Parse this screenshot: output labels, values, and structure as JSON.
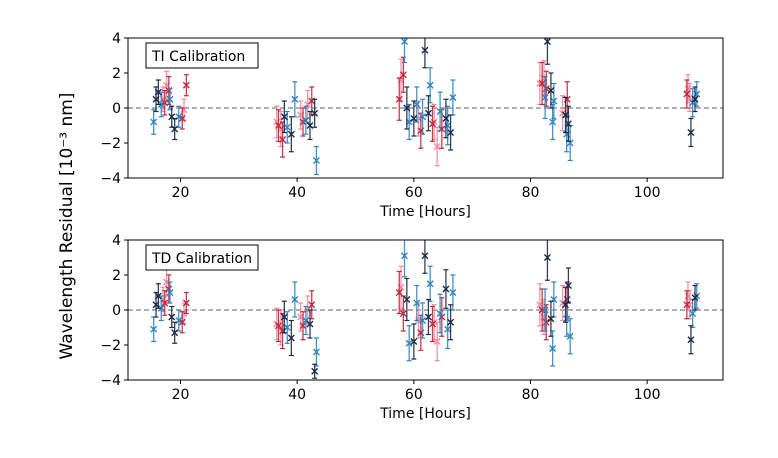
{
  "figure": {
    "ylabel_shared": "Wavelength Residual [10⁻³ nm]"
  },
  "chart_data": [
    {
      "type": "scatter",
      "title": "TI Calibration",
      "xlabel": "Time [Hours]",
      "xlim": [
        11,
        113
      ],
      "ylim": [
        -4,
        4
      ],
      "xticks": [
        20,
        40,
        60,
        80,
        100
      ],
      "yticks": [
        -4,
        -2,
        0,
        2,
        4
      ],
      "reference_line_y": 0,
      "colors": {
        "red": "#c2273a",
        "pink": "#f08aa0",
        "navy": "#1c2b4a",
        "blue": "#2e86c1"
      },
      "series": [
        {
          "name": "navy",
          "color": "navy",
          "points": [
            [
              15.8,
              0.5,
              0.7
            ],
            [
              16.2,
              0.9,
              0.7
            ],
            [
              18.5,
              -0.5,
              0.6
            ],
            [
              19,
              -1.2,
              0.6
            ],
            [
              37.8,
              -0.5,
              0.9
            ],
            [
              39,
              -1.5,
              1
            ],
            [
              42.2,
              -1,
              0.8
            ],
            [
              43,
              -0.3,
              0.8
            ],
            [
              58.8,
              0,
              1.2
            ],
            [
              60,
              -0.6,
              1
            ],
            [
              61.9,
              3.3,
              1
            ],
            [
              62.5,
              -0.3,
              1
            ],
            [
              65.5,
              -0.6,
              1.1
            ],
            [
              66.3,
              -1.4,
              1
            ],
            [
              82.9,
              3.8,
              1.3
            ],
            [
              83.5,
              1.0,
              1
            ],
            [
              86,
              -0.4,
              1
            ],
            [
              86.5,
              -0.9,
              1
            ],
            [
              107.5,
              -1.4,
              0.8
            ],
            [
              108.2,
              0.5,
              0.7
            ]
          ]
        },
        {
          "name": "blue",
          "color": "blue",
          "points": [
            [
              15.4,
              -0.8,
              0.7
            ],
            [
              16.7,
              0.2,
              0.7
            ],
            [
              18.2,
              0.5,
              0.6
            ],
            [
              19.7,
              -0.5,
              0.6
            ],
            [
              38.3,
              -1.1,
              0.9
            ],
            [
              39.6,
              0.5,
              1
            ],
            [
              41.5,
              -0.7,
              0.8
            ],
            [
              43.3,
              -3.0,
              0.8
            ],
            [
              58.4,
              3.8,
              1.2
            ],
            [
              59.2,
              -0.8,
              1
            ],
            [
              60.5,
              0.2,
              1
            ],
            [
              61.5,
              -0.5,
              1
            ],
            [
              62.8,
              1.3,
              1
            ],
            [
              64.5,
              -0.2,
              1.1
            ],
            [
              65.8,
              -1.0,
              1.1
            ],
            [
              66.7,
              0.6,
              1
            ],
            [
              82.5,
              0.6,
              1.2
            ],
            [
              83.8,
              -0.8,
              1
            ],
            [
              84,
              0.4,
              1
            ],
            [
              86.2,
              -1.5,
              1
            ],
            [
              86.8,
              -2.0,
              1
            ],
            [
              107.8,
              0.3,
              0.8
            ],
            [
              108.5,
              0.8,
              0.7
            ]
          ]
        },
        {
          "name": "red",
          "color": "red",
          "points": [
            [
              17.3,
              0.3,
              0.7
            ],
            [
              18,
              1.0,
              0.8
            ],
            [
              20.3,
              -0.6,
              0.6
            ],
            [
              21,
              1.3,
              0.6
            ],
            [
              36.8,
              -1.0,
              0.9
            ],
            [
              37.5,
              -1.8,
              1
            ],
            [
              41,
              -0.8,
              0.8
            ],
            [
              42.5,
              0.4,
              0.8
            ],
            [
              57.5,
              0.5,
              1.2
            ],
            [
              58.2,
              1.9,
              1
            ],
            [
              61.2,
              -1.3,
              1
            ],
            [
              63.2,
              -0.9,
              1
            ],
            [
              64.8,
              -1.2,
              1.1
            ],
            [
              82,
              1.4,
              1.2
            ],
            [
              82.7,
              1.1,
              1
            ],
            [
              86.3,
              0.5,
              1
            ],
            [
              106.8,
              0.8,
              0.8
            ]
          ]
        },
        {
          "name": "pink",
          "color": "pink",
          "points": [
            [
              17,
              0.5,
              0.7
            ],
            [
              17.6,
              1.3,
              0.8
            ],
            [
              20.6,
              -0.1,
              0.6
            ],
            [
              36.5,
              -0.8,
              0.9
            ],
            [
              37.2,
              -1.2,
              1
            ],
            [
              40.6,
              -0.4,
              0.8
            ],
            [
              41.8,
              0.2,
              0.8
            ],
            [
              57.8,
              1.6,
              1.2
            ],
            [
              60.8,
              -0.6,
              1
            ],
            [
              63.5,
              -0.8,
              1
            ],
            [
              64,
              -2.2,
              1.1
            ],
            [
              81.6,
              1.4,
              1.2
            ],
            [
              82.3,
              1.7,
              1
            ],
            [
              85.5,
              -0.3,
              1
            ],
            [
              107,
              1.1,
              0.8
            ],
            [
              107.3,
              0.6,
              0.8
            ]
          ]
        }
      ]
    },
    {
      "type": "scatter",
      "title": "TD Calibration",
      "xlabel": "Time [Hours]",
      "xlim": [
        11,
        113
      ],
      "ylim": [
        -4,
        4
      ],
      "xticks": [
        20,
        40,
        60,
        80,
        100
      ],
      "yticks": [
        -4,
        -2,
        0,
        2,
        4
      ],
      "reference_line_y": 0,
      "colors": {
        "red": "#c2273a",
        "pink": "#f08aa0",
        "navy": "#1c2b4a",
        "blue": "#2e86c1"
      },
      "series": [
        {
          "name": "navy",
          "color": "navy",
          "points": [
            [
              15.8,
              0.3,
              0.7
            ],
            [
              16.2,
              0.8,
              0.7
            ],
            [
              18.5,
              -0.4,
              0.6
            ],
            [
              19,
              -1.3,
              0.6
            ],
            [
              37.8,
              -0.4,
              0.9
            ],
            [
              39,
              -1.6,
              1
            ],
            [
              42.2,
              -0.8,
              0.8
            ],
            [
              43,
              -3.5,
              0.4
            ],
            [
              58.8,
              0.6,
              1.2
            ],
            [
              60,
              -1.8,
              1
            ],
            [
              61.9,
              3.1,
              1
            ],
            [
              62.5,
              -0.4,
              1
            ],
            [
              65.5,
              1.2,
              1.1
            ],
            [
              66.3,
              -0.7,
              1
            ],
            [
              82.9,
              3.0,
              1.3
            ],
            [
              83.5,
              -0.5,
              1
            ],
            [
              86,
              0.3,
              1
            ],
            [
              86.5,
              1.4,
              1
            ],
            [
              107.5,
              -1.7,
              0.8
            ],
            [
              108.2,
              0.7,
              0.7
            ]
          ]
        },
        {
          "name": "blue",
          "color": "blue",
          "points": [
            [
              15.4,
              -1.1,
              0.7
            ],
            [
              16.7,
              0.1,
              0.7
            ],
            [
              18.2,
              1.0,
              0.6
            ],
            [
              19.7,
              -0.6,
              0.6
            ],
            [
              38.3,
              -1.0,
              0.9
            ],
            [
              39.6,
              0.6,
              1
            ],
            [
              41.5,
              -0.6,
              0.8
            ],
            [
              43.3,
              -2.4,
              0.8
            ],
            [
              58.4,
              3.1,
              1.2
            ],
            [
              59.2,
              -1.9,
              1
            ],
            [
              60.5,
              0.4,
              1
            ],
            [
              61.5,
              -0.6,
              1
            ],
            [
              62.8,
              1.5,
              1
            ],
            [
              64.5,
              -0.2,
              1.1
            ],
            [
              65.8,
              -1.1,
              1.1
            ],
            [
              66.7,
              1.0,
              1
            ],
            [
              82.5,
              0.0,
              1.2
            ],
            [
              83.8,
              -2.2,
              1
            ],
            [
              84,
              0.6,
              1
            ],
            [
              86.2,
              -0.5,
              1
            ],
            [
              86.8,
              -1.5,
              1
            ],
            [
              107.8,
              -0.2,
              0.8
            ],
            [
              108.5,
              0.8,
              0.7
            ]
          ]
        },
        {
          "name": "red",
          "color": "red",
          "points": [
            [
              17.3,
              0.4,
              0.7
            ],
            [
              18,
              1.2,
              0.8
            ],
            [
              20.3,
              -0.7,
              0.6
            ],
            [
              21,
              0.4,
              0.6
            ],
            [
              36.8,
              -0.9,
              0.9
            ],
            [
              37.5,
              -1.2,
              1
            ],
            [
              41,
              -0.9,
              0.8
            ],
            [
              42.5,
              0.3,
              0.8
            ],
            [
              57.5,
              1.0,
              1.2
            ],
            [
              58.2,
              -0.2,
              1
            ],
            [
              61.2,
              -1.3,
              1
            ],
            [
              63.2,
              -0.8,
              1
            ],
            [
              64.8,
              -0.4,
              1.1
            ],
            [
              82,
              0.0,
              1.2
            ],
            [
              82.7,
              -0.7,
              1
            ],
            [
              86.3,
              0.6,
              1
            ],
            [
              106.8,
              0.3,
              0.8
            ]
          ]
        },
        {
          "name": "pink",
          "color": "pink",
          "points": [
            [
              17,
              0.6,
              0.7
            ],
            [
              17.6,
              1.6,
              0.8
            ],
            [
              20.6,
              -0.2,
              0.6
            ],
            [
              36.5,
              -0.8,
              0.9
            ],
            [
              37.2,
              -1.0,
              1
            ],
            [
              40.6,
              -0.4,
              0.8
            ],
            [
              41.8,
              0.0,
              0.8
            ],
            [
              57.8,
              1.3,
              1.2
            ],
            [
              60.8,
              -0.6,
              1
            ],
            [
              63.5,
              -0.7,
              1
            ],
            [
              64,
              -1.8,
              1.1
            ],
            [
              81.6,
              0.3,
              1.2
            ],
            [
              82.3,
              -0.4,
              1
            ],
            [
              85.5,
              0.4,
              1
            ],
            [
              107,
              0.8,
              0.8
            ],
            [
              107.3,
              0.3,
              0.8
            ]
          ]
        }
      ]
    }
  ]
}
